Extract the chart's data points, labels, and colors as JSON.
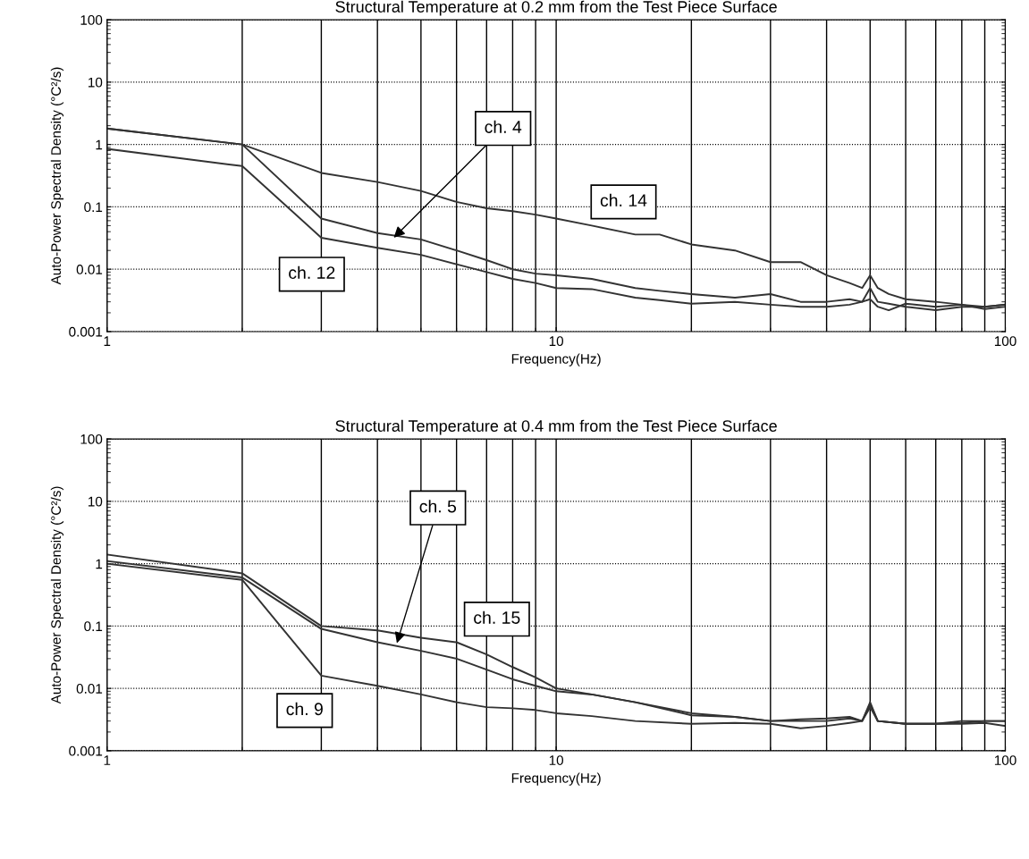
{
  "chart_data": [
    {
      "type": "line",
      "title": "Structural Temperature at 0.2 mm from the Test Piece Surface",
      "xlabel": "Frequency(Hz)",
      "ylabel": "Auto-Power Spectral Density (°C²/s)",
      "log": "xy",
      "grid": true,
      "marker": "none",
      "line_style": "solid",
      "xlim": [
        1,
        100
      ],
      "xticks": [
        1,
        10,
        100
      ],
      "ylim": [
        0.001,
        100
      ],
      "yticks": [
        0.001,
        0.01,
        0.1,
        1,
        10,
        100
      ],
      "x": [
        1,
        2,
        3,
        4,
        5,
        6,
        7,
        8,
        9,
        10,
        12,
        15,
        17,
        20,
        25,
        30,
        35,
        40,
        45,
        48,
        50,
        52,
        55,
        60,
        70,
        80,
        90,
        100
      ],
      "series": [
        {
          "color": "#333333",
          "values": [
            1.8,
            1.0,
            0.35,
            0.25,
            0.18,
            0.12,
            0.095,
            0.085,
            0.075,
            0.065,
            0.05,
            0.036,
            0.036,
            0.025,
            0.02,
            0.013,
            0.013,
            0.008,
            0.006,
            0.005,
            0.008,
            0.005,
            0.004,
            0.0033,
            0.003,
            0.0027,
            0.0025,
            0.0027
          ]
        },
        {
          "color": "#333333",
          "values": [
            1.8,
            1.0,
            0.065,
            0.038,
            0.03,
            0.02,
            0.014,
            0.01,
            0.0085,
            0.008,
            0.007,
            0.005,
            0.0045,
            0.004,
            0.0035,
            0.004,
            0.003,
            0.003,
            0.0033,
            0.003,
            0.0033,
            0.0025,
            0.0022,
            0.0028,
            0.0025,
            0.0027,
            0.0023,
            0.0025
          ]
        },
        {
          "color": "#333333",
          "values": [
            0.85,
            0.45,
            0.032,
            0.022,
            0.017,
            0.012,
            0.009,
            0.007,
            0.006,
            0.005,
            0.0048,
            0.0035,
            0.0032,
            0.0028,
            0.003,
            0.0027,
            0.0025,
            0.0025,
            0.0027,
            0.003,
            0.005,
            0.003,
            0.0028,
            0.0025,
            0.0022,
            0.0025,
            0.0025,
            0.0027
          ]
        }
      ],
      "annotations": [
        {
          "text": "ch. 4",
          "x": 4.35,
          "y": 0.032
        },
        "ch. 14",
        "ch. 12"
      ]
    },
    {
      "type": "line",
      "title": "Structural Temperature at 0.4 mm from the Test Piece Surface",
      "xlabel": "Frequency(Hz)",
      "ylabel": "Auto-Power Spectral Density (°C²/s)",
      "log": "xy",
      "grid": true,
      "marker": "none",
      "line_style": "solid",
      "xlim": [
        1,
        100
      ],
      "xticks": [
        1,
        10,
        100
      ],
      "ylim": [
        0.001,
        100
      ],
      "yticks": [
        0.001,
        0.01,
        0.1,
        1,
        10,
        100
      ],
      "x": [
        1,
        2,
        3,
        4,
        5,
        6,
        7,
        8,
        9,
        10,
        12,
        15,
        20,
        25,
        30,
        35,
        40,
        45,
        48,
        50,
        52,
        60,
        70,
        80,
        90,
        100
      ],
      "series": [
        {
          "color": "#333333",
          "values": [
            1.4,
            0.7,
            0.1,
            0.085,
            0.065,
            0.055,
            0.035,
            0.022,
            0.015,
            0.01,
            0.008,
            0.006,
            0.004,
            0.0035,
            0.003,
            0.0032,
            0.0033,
            0.0035,
            0.003,
            0.006,
            0.003,
            0.0027,
            0.0027,
            0.003,
            0.003,
            0.003
          ]
        },
        {
          "color": "#333333",
          "values": [
            1.1,
            0.6,
            0.09,
            0.055,
            0.04,
            0.03,
            0.02,
            0.014,
            0.011,
            0.009,
            0.008,
            0.006,
            0.0037,
            0.0035,
            0.003,
            0.003,
            0.003,
            0.0033,
            0.003,
            0.0055,
            0.003,
            0.0027,
            0.0027,
            0.0028,
            0.003,
            0.003
          ]
        },
        {
          "color": "#333333",
          "values": [
            1.0,
            0.55,
            0.016,
            0.011,
            0.008,
            0.006,
            0.005,
            0.0048,
            0.0045,
            0.004,
            0.0036,
            0.003,
            0.0027,
            0.0028,
            0.0027,
            0.0023,
            0.0025,
            0.0028,
            0.003,
            0.005,
            0.003,
            0.0027,
            0.0027,
            0.0027,
            0.0028,
            0.0025
          ]
        }
      ],
      "annotations": [
        {
          "text": "ch. 5",
          "x": 4.42,
          "y": 0.053
        },
        "ch. 15",
        "ch. 9"
      ]
    }
  ]
}
